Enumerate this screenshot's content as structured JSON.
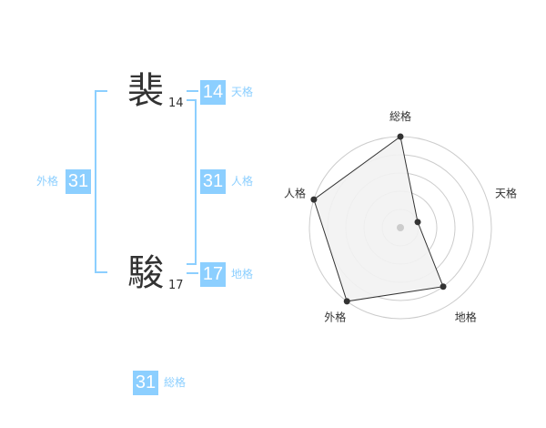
{
  "characters": [
    {
      "char": "裴",
      "strokes": "14"
    },
    {
      "char": "駿",
      "strokes": "17"
    }
  ],
  "fortunes": {
    "tenkaku": {
      "label": "天格",
      "value": "14"
    },
    "jinkaku": {
      "label": "人格",
      "value": "31"
    },
    "chikaku": {
      "label": "地格",
      "value": "17"
    },
    "gaikaku": {
      "label": "外格",
      "value": "31"
    },
    "soukaku": {
      "label": "総格",
      "value": "31"
    }
  },
  "chart_data": {
    "type": "radar",
    "axes": [
      "総格",
      "天格",
      "地格",
      "外格",
      "人格"
    ],
    "values": [
      5,
      1,
      4,
      5,
      5
    ],
    "range": [
      0,
      5
    ],
    "rings": 5,
    "colors": {
      "fill": "#f2f2f2",
      "line": "#333333",
      "grid": "#cccccc",
      "accent": "#8ccfff"
    }
  }
}
